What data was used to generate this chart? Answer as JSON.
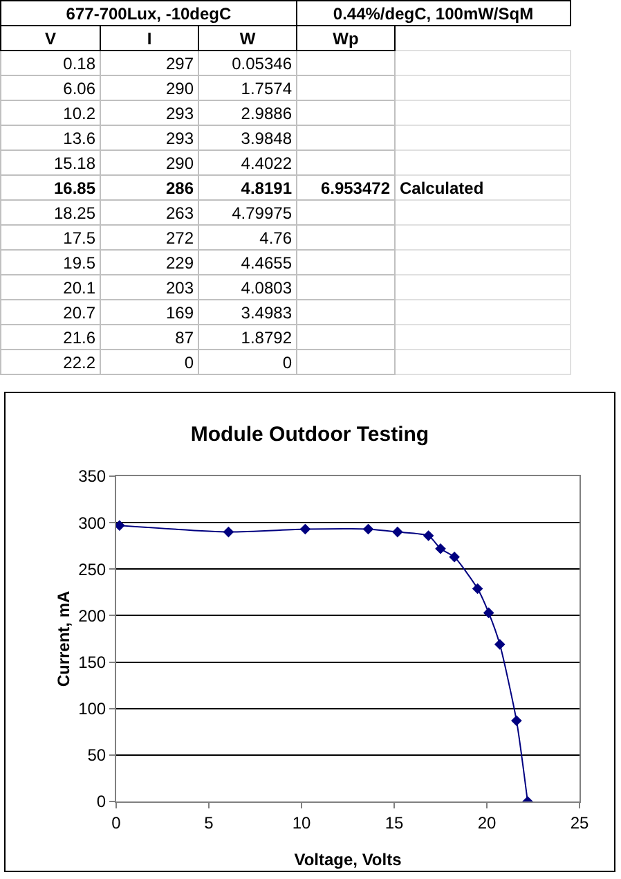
{
  "chart_data": [
    {
      "type": "other",
      "categories": [
        "V",
        "I",
        "W",
        "Wp"
      ],
      "annotations": [
        "677-700Lux, -10degC",
        "0.44%/degC, 100mW/SqM",
        "0.18",
        "297",
        "0.05346",
        "6.06",
        "290",
        "1.7574",
        "10.2",
        "293",
        "2.9886",
        "13.6",
        "293",
        "3.9848",
        "15.18",
        "290",
        "4.4022",
        "16.85",
        "286",
        "4.8191",
        "6.953472",
        "Calculated",
        "18.25",
        "263",
        "4.79975",
        "17.5",
        "272",
        "4.76",
        "19.5",
        "229",
        "4.4655",
        "20.1",
        "203",
        "4.0803",
        "20.7",
        "169",
        "3.4983",
        "21.6",
        "87",
        "1.8792",
        "22.2",
        "0",
        "0"
      ]
    },
    {
      "type": "line",
      "title": "Module Outdoor Testing",
      "xlabel": "Voltage, Volts",
      "ylabel": "Current, mA",
      "x": [
        0.18,
        6.06,
        10.2,
        13.6,
        15.18,
        16.85,
        17.5,
        18.25,
        19.5,
        20.1,
        20.7,
        21.6,
        22.2
      ],
      "series": [
        {
          "color": "#000080",
          "values": [
            297,
            290,
            293,
            293,
            290,
            286,
            272,
            263,
            229,
            203,
            169,
            87,
            0
          ]
        }
      ],
      "xlim": [
        0,
        25
      ],
      "xticks": [
        0,
        5,
        10,
        15,
        20,
        25
      ],
      "ylim": [
        0,
        350
      ],
      "yticks": [
        0,
        50,
        100,
        150,
        200,
        250,
        300,
        350
      ],
      "grid": "y",
      "marker": "diamond",
      "line_style": "solid"
    }
  ]
}
